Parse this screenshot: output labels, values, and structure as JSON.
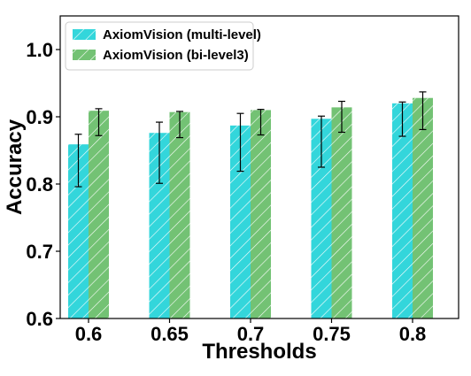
{
  "chart_data": {
    "type": "bar",
    "title": "",
    "xlabel": "Thresholds",
    "ylabel": "Accuracy",
    "categories": [
      "0.6",
      "0.65",
      "0.7",
      "0.75",
      "0.8"
    ],
    "ylim": [
      0.6,
      1.05
    ],
    "yticks": [
      "0.6",
      "0.7",
      "0.8",
      "0.9",
      "1.0"
    ],
    "grid": false,
    "legend_position": "top-left",
    "series": [
      {
        "name": "AxiomVision (multi-level)",
        "color": "#33d6db",
        "hatch": "diagonal",
        "values": [
          0.859,
          0.876,
          0.887,
          0.897,
          0.92
        ],
        "error_low": [
          0.796,
          0.801,
          0.819,
          0.825,
          0.871
        ],
        "error_high": [
          0.874,
          0.892,
          0.905,
          0.901,
          0.922
        ]
      },
      {
        "name": "AxiomVision (bi-level3)",
        "color": "#73c274",
        "hatch": "diagonal",
        "values": [
          0.909,
          0.907,
          0.91,
          0.914,
          0.928
        ],
        "error_low": [
          0.872,
          0.869,
          0.873,
          0.877,
          0.881
        ],
        "error_high": [
          0.912,
          0.908,
          0.911,
          0.923,
          0.937
        ]
      }
    ]
  }
}
